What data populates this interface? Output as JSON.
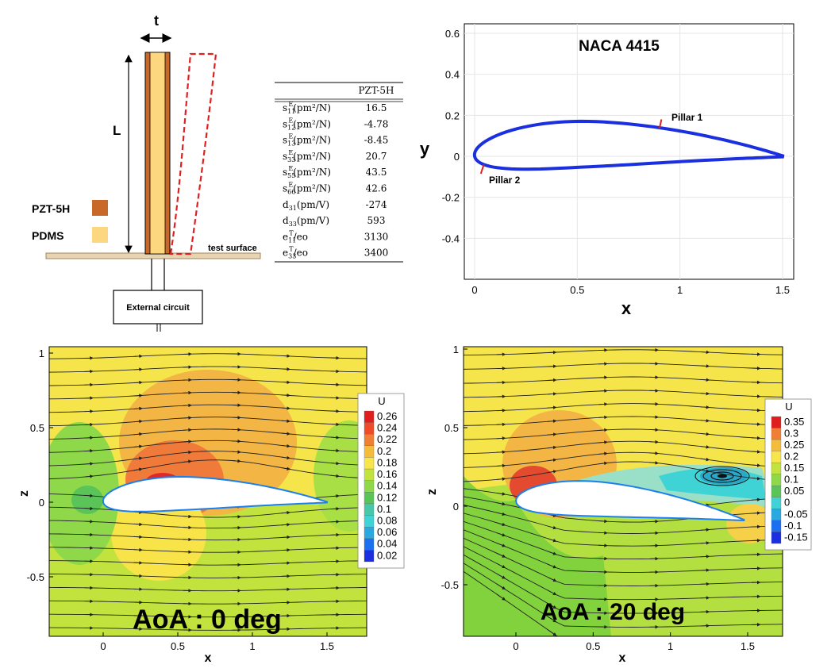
{
  "pillar": {
    "t_label": "t",
    "L_label": "L",
    "legend": [
      {
        "label": "PZT-5H",
        "color": "#c8692a"
      },
      {
        "label": "PDMS",
        "color": "#fcd77f"
      }
    ],
    "surface_label": "test surface",
    "circuit_label": "External circuit"
  },
  "properties_table": {
    "header": "PZT-5H",
    "rows": [
      {
        "sym": "s",
        "sub": "11",
        "sup": "E",
        "unit": "(pm²/N)",
        "value": "16.5"
      },
      {
        "sym": "s",
        "sub": "12",
        "sup": "E",
        "unit": "(pm²/N)",
        "value": "-4.78"
      },
      {
        "sym": "s",
        "sub": "13",
        "sup": "E",
        "unit": "(pm²/N)",
        "value": "-8.45"
      },
      {
        "sym": "s",
        "sub": "33",
        "sup": "E",
        "unit": "(pm²/N)",
        "value": "20.7"
      },
      {
        "sym": "s",
        "sub": "55",
        "sup": "E",
        "unit": "(pm²/N)",
        "value": "43.5"
      },
      {
        "sym": "s",
        "sub": "66",
        "sup": "E",
        "unit": "(pm²/N)",
        "value": "42.6"
      },
      {
        "sym": "d",
        "sub": "31",
        "sup": "",
        "unit": "(pm/V)",
        "value": "-274"
      },
      {
        "sym": "d",
        "sub": "33",
        "sup": "",
        "unit": "(pm/V)",
        "value": "593"
      },
      {
        "sym": "e",
        "sub": "11",
        "sup": "T",
        "unit": "/eo",
        "value": "3130"
      },
      {
        "sym": "e",
        "sub": "33",
        "sup": "T",
        "unit": "/eo",
        "value": "3400"
      }
    ]
  },
  "airfoil_plot": {
    "title": "NACA 4415",
    "xlabel": "x",
    "ylabel": "y",
    "xticks": [
      "0",
      "0.5",
      "1",
      "1.5"
    ],
    "yticks": [
      "0.6",
      "0.4",
      "0.2",
      "0",
      "-0.2",
      "-0.4"
    ],
    "xlim": [
      -0.05,
      1.55
    ],
    "ylim": [
      -0.6,
      0.65
    ],
    "pillars": [
      "Pillar 1",
      "Pillar 2"
    ],
    "line_color": "#1a2fe0",
    "pillar_color": "#e02020"
  },
  "flow_left": {
    "caption": "AoA : 0 deg",
    "xlabel": "x",
    "zlabel": "z",
    "xticks": [
      "0",
      "0.5",
      "1",
      "1.5"
    ],
    "zticks": [
      "1",
      "0.5",
      "0",
      "-0.5"
    ],
    "legend_title": "U",
    "legend_values": [
      "0.26",
      "0.24",
      "0.22",
      "0.2",
      "0.18",
      "0.16",
      "0.14",
      "0.12",
      "0.1",
      "0.08",
      "0.06",
      "0.04",
      "0.02"
    ]
  },
  "flow_right": {
    "caption": "AoA : 20 deg",
    "xlabel": "x",
    "zlabel": "z",
    "xticks": [
      "0",
      "0.5",
      "1",
      "1.5"
    ],
    "zticks": [
      "1",
      "0.5",
      "0",
      "-0.5"
    ],
    "legend_title": "U",
    "legend_values": [
      "0.35",
      "0.3",
      "0.25",
      "0.2",
      "0.15",
      "0.1",
      "0.05",
      "0",
      "-0.05",
      "-0.1",
      "-0.15"
    ]
  }
}
